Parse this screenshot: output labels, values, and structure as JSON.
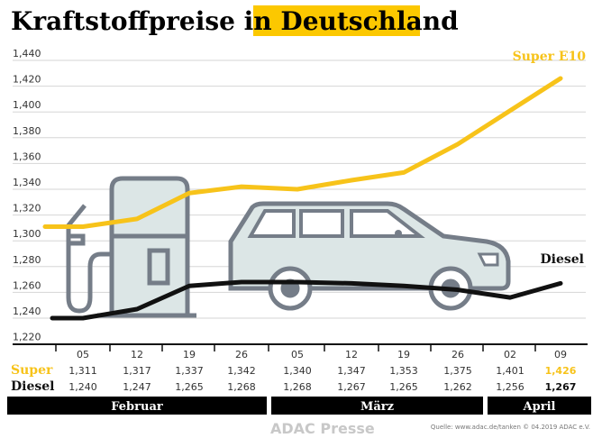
{
  "title_part1": "Kraftstoffpreise in",
  "title_part2": "Deutschland",
  "source": "Quelle: www.adac.de/tanken   © 04.2019 ADAC e.V.",
  "watermark": "ADAC Presse",
  "colors": {
    "super": "#f7c31a",
    "diesel": "#111111",
    "highlight": "#fcc800",
    "illustration_stroke": "#757d88",
    "illustration_fill": "#dce6e6"
  },
  "chart_data": {
    "type": "line",
    "title": "Kraftstoffpreise in Deutschland",
    "x": [
      "05",
      "12",
      "19",
      "26",
      "05",
      "12",
      "19",
      "26",
      "02",
      "09"
    ],
    "months": [
      {
        "label": "Februar",
        "span": 4
      },
      {
        "label": "März",
        "span": 4
      },
      {
        "label": "April",
        "span": 2
      }
    ],
    "y_ticks": [
      "1,440",
      "1,420",
      "1,400",
      "1,380",
      "1,360",
      "1,340",
      "1,320",
      "1,300",
      "1,280",
      "1,260",
      "1,240",
      "1,220"
    ],
    "ylim": [
      1.22,
      1.44
    ],
    "grid": true,
    "series": [
      {
        "name": "Super E10",
        "row_label": "Super",
        "values": [
          1.311,
          1.317,
          1.337,
          1.342,
          1.34,
          1.347,
          1.353,
          1.375,
          1.401,
          1.426
        ],
        "labels": [
          "1,311",
          "1,317",
          "1,337",
          "1,342",
          "1,340",
          "1,347",
          "1,353",
          "1,375",
          "1,401",
          "1,426"
        ]
      },
      {
        "name": "Diesel",
        "row_label": "Diesel",
        "values": [
          1.24,
          1.247,
          1.265,
          1.268,
          1.268,
          1.267,
          1.265,
          1.262,
          1.256,
          1.267
        ],
        "labels": [
          "1,240",
          "1,247",
          "1,265",
          "1,268",
          "1,268",
          "1,267",
          "1,265",
          "1,262",
          "1,256",
          "1,267"
        ]
      }
    ]
  }
}
